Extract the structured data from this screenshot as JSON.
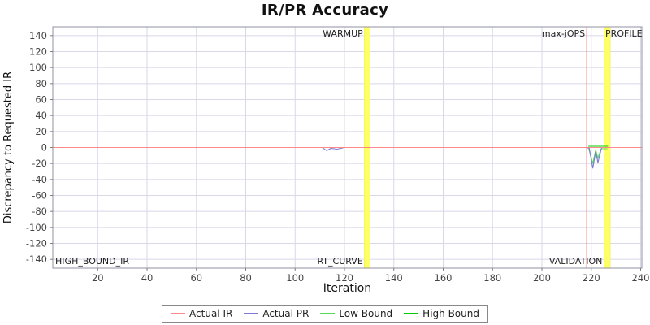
{
  "chart_data": {
    "type": "line",
    "title": "IR/PR Accuracy",
    "xlabel": "Iteration",
    "ylabel": "Discrepancy to Requested IR",
    "xlim": [
      1.8,
      240.5
    ],
    "ylim": [
      -151,
      151
    ],
    "x_ticks": [
      20,
      40,
      60,
      80,
      100,
      120,
      140,
      160,
      180,
      200,
      220,
      240
    ],
    "y_ticks": [
      -140,
      -120,
      -100,
      -80,
      -60,
      -40,
      -20,
      0,
      20,
      40,
      60,
      80,
      100,
      120,
      140
    ],
    "grid": true,
    "legend_position": "bottom",
    "style": {
      "background": "#ffffff",
      "grid_color": "#d8d8e8",
      "plot_border_color": "#9090a0",
      "tick_color": "#808080",
      "tick_text_color": "#444444",
      "annotation_color": "#222222",
      "band_color": "#ffff66",
      "band_edge_color": "#eeee44",
      "vline_color": "#ff5555",
      "axis_label_color": "#111111"
    },
    "bands": [
      {
        "name": "warmup-band",
        "x0": 128.0,
        "x1": 130.4
      },
      {
        "name": "profile-band",
        "x0": 225.3,
        "x1": 227.7
      }
    ],
    "vlines": [
      {
        "name": "max-jops-line",
        "x": 218.2
      }
    ],
    "annotations": [
      {
        "text": "WARMUP",
        "x": 127.5,
        "align": "end",
        "v": "top"
      },
      {
        "text": "RT_CURVE",
        "x": 127.5,
        "align": "end",
        "v": "bottom"
      },
      {
        "text": "max-jOPS",
        "x": 217.5,
        "align": "end",
        "v": "top"
      },
      {
        "text": "PROFILE",
        "x": 225.7,
        "align": "start",
        "v": "top"
      },
      {
        "text": "VALIDATION",
        "x": 224.5,
        "align": "end",
        "v": "bottom"
      },
      {
        "text": "HIGH_BOUND_IR",
        "x": 2.8,
        "align": "start",
        "v": "bottom"
      }
    ],
    "series": [
      {
        "name": "Actual IR",
        "color": "#ff8888",
        "points": [
          [
            1.8,
            0
          ],
          [
            240.5,
            0
          ]
        ]
      },
      {
        "name": "Actual PR",
        "color": "#7b7bd6",
        "points": [
          [
            1.8,
            0
          ],
          [
            111,
            0
          ],
          [
            112.8,
            -4
          ],
          [
            114.5,
            -1
          ],
          [
            117,
            -2
          ],
          [
            120,
            0
          ],
          [
            217.8,
            0
          ],
          [
            219.2,
            -1
          ],
          [
            220.6,
            -26
          ],
          [
            221.8,
            -5
          ],
          [
            222.7,
            -19
          ],
          [
            224.2,
            0
          ],
          [
            240.5,
            0
          ]
        ]
      },
      {
        "name": "Low Bound",
        "color": "#55dd55",
        "points": [
          [
            219.0,
            -1.5
          ],
          [
            220.6,
            -20
          ],
          [
            221.8,
            -3
          ],
          [
            222.7,
            -13
          ],
          [
            224.0,
            -1.5
          ],
          [
            226.5,
            -1.5
          ]
        ]
      },
      {
        "name": "High Bound",
        "color": "#00cc00",
        "points": [
          [
            218.8,
            1.5
          ],
          [
            226.8,
            1.5
          ]
        ]
      }
    ]
  },
  "legend": {
    "items": [
      {
        "label": "Actual IR",
        "color": "#ff8888"
      },
      {
        "label": "Actual PR",
        "color": "#7b7bd6"
      },
      {
        "label": "Low Bound",
        "color": "#55dd55"
      },
      {
        "label": "High Bound",
        "color": "#00cc00"
      }
    ]
  }
}
